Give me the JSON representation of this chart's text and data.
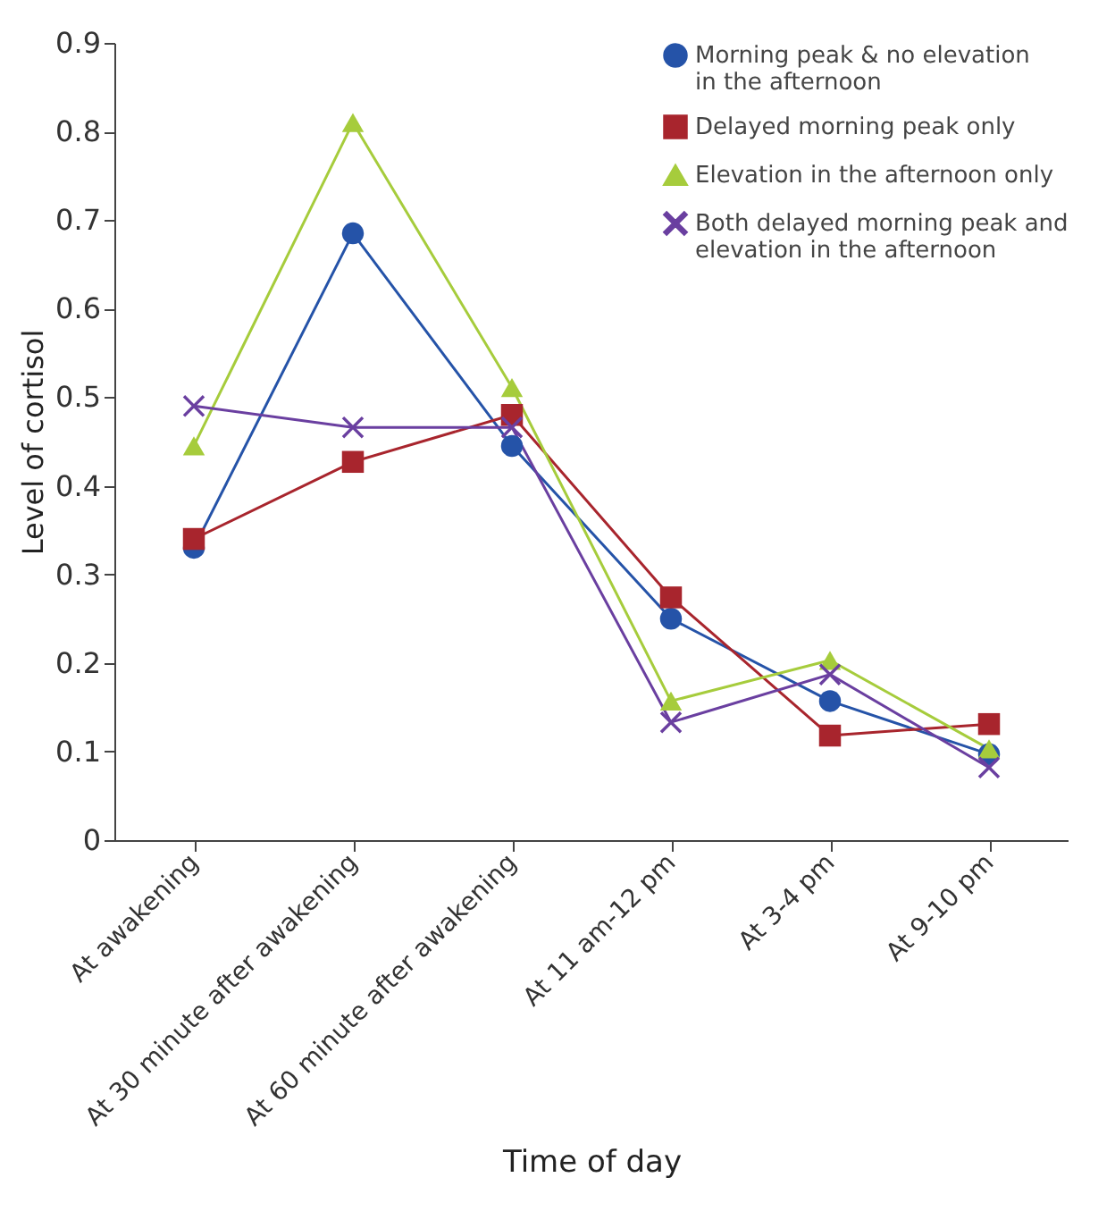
{
  "chart_data": {
    "type": "line",
    "xlabel": "Time of day",
    "ylabel": "Level of cortisol",
    "categories": [
      "At awakening",
      "At 30 minute after awakening",
      "At 60 minute after awakening",
      "At 11 am-12 pm",
      "At 3-4 pm",
      "At 9-10 pm"
    ],
    "series": [
      {
        "name": "Morning peak & no elevation in the afternoon",
        "color": "#2553a8",
        "marker": "circle",
        "values": [
          0.33,
          0.685,
          0.445,
          0.25,
          0.157,
          0.097
        ]
      },
      {
        "name": "Delayed morning peak only",
        "color": "#a8252d",
        "marker": "square",
        "values": [
          0.34,
          0.427,
          0.48,
          0.274,
          0.118,
          0.131
        ]
      },
      {
        "name": "Elevation in the afternoon only",
        "color": "#a6cc3c",
        "marker": "triangle",
        "values": [
          0.445,
          0.81,
          0.511,
          0.157,
          0.203,
          0.103
        ]
      },
      {
        "name": "Both delayed morning peak and elevation in the afternoon",
        "color": "#6a3fa0",
        "marker": "cross",
        "values": [
          0.49,
          0.466,
          0.466,
          0.133,
          0.187,
          0.082
        ]
      }
    ],
    "ylim": [
      0,
      0.9
    ],
    "yticks": [
      0,
      0.1,
      0.2,
      0.3,
      0.4,
      0.5,
      0.6,
      0.7,
      0.8,
      0.9
    ],
    "grid": false,
    "legend": "top right",
    "line_style": "solid"
  }
}
